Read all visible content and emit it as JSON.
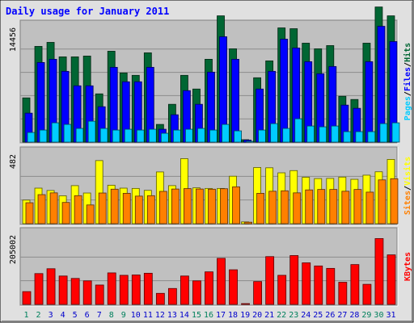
{
  "chart_data": {
    "type": "bar",
    "title": "Daily usage for January 2011",
    "categories": [
      "1",
      "2",
      "3",
      "4",
      "5",
      "6",
      "7",
      "8",
      "9",
      "10",
      "11",
      "12",
      "13",
      "14",
      "15",
      "16",
      "17",
      "18",
      "19",
      "20",
      "21",
      "22",
      "23",
      "24",
      "25",
      "26",
      "27",
      "28",
      "29",
      "30",
      "31"
    ],
    "weekend_days": [
      "1",
      "2",
      "8",
      "9",
      "15",
      "16",
      "22",
      "23",
      "29",
      "30"
    ],
    "panels": [
      {
        "id": "hits",
        "max_label": "14456",
        "max": 14456,
        "series": [
          {
            "name": "Hits",
            "color": "#006633",
            "values": [
              5500,
              11900,
              12400,
              10600,
              10600,
              10700,
              6000,
              11300,
              8600,
              8300,
              11100,
              2200,
              4700,
              8300,
              6600,
              10300,
              15700,
              11600,
              300,
              8000,
              10100,
              14200,
              14100,
              12300,
              11600,
              12000,
              5700,
              5300,
              12300,
              16800,
              15700
            ]
          },
          {
            "name": "Files",
            "color": "#0000FF",
            "values": [
              3600,
              9900,
              10300,
              8800,
              7000,
              7000,
              4400,
              9300,
              7500,
              7500,
              9300,
              1600,
              3400,
              6400,
              4700,
              8700,
              13100,
              10300,
              250,
              6600,
              8800,
              12800,
              11700,
              10000,
              8500,
              9400,
              4600,
              4200,
              10000,
              14400,
              12500
            ]
          },
          {
            "name": "Pages",
            "color": "#00CCFF",
            "values": [
              1200,
              1500,
              2400,
              2200,
              1700,
              2600,
              1700,
              1500,
              1600,
              1500,
              1600,
              1100,
              1500,
              1600,
              1700,
              1500,
              2200,
              1400,
              90,
              1500,
              2300,
              1700,
              2900,
              2000,
              1900,
              2000,
              1300,
              1300,
              1300,
              2300,
              2400
            ]
          }
        ]
      },
      {
        "id": "visits",
        "max_label": "482",
        "max": 482,
        "series": [
          {
            "name": "Visits",
            "color": "#FFFF00",
            "values": [
              160,
              241,
              225,
              189,
              258,
              208,
              428,
              261,
              241,
              239,
              226,
              351,
              258,
              441,
              243,
              239,
              239,
              322,
              12,
              381,
              379,
              345,
              360,
              315,
              306,
              307,
              316,
              301,
              329,
              352,
              436
            ]
          },
          {
            "name": "Sites",
            "color": "#FF8000",
            "values": [
              142,
              197,
              209,
              144,
              190,
              127,
              208,
              234,
              206,
              187,
              190,
              219,
              235,
              238,
              235,
              234,
              237,
              250,
              10,
              206,
              220,
              223,
              209,
              229,
              232,
              232,
              220,
              232,
              214,
              297,
              305
            ]
          }
        ]
      },
      {
        "id": "kbytes",
        "max_label": "205002",
        "max": 205002,
        "series": [
          {
            "name": "KBytes",
            "color": "#FF0000",
            "values": [
              37000,
              89000,
              103000,
              82000,
              75000,
              68000,
              56000,
              91000,
              84000,
              85000,
              90000,
              32000,
              46000,
              82000,
              68000,
              94000,
              133000,
              100000,
              1000,
              66000,
              138000,
              84000,
              141000,
              120000,
              111000,
              104000,
              64000,
              115000,
              58000,
              190000,
              143000
            ]
          }
        ]
      }
    ],
    "side_labels": {
      "hits": [
        "Pages",
        "/",
        "Files",
        "/",
        "Hits"
      ],
      "visits": [
        "Sites",
        "/",
        "Visits"
      ],
      "kbytes": [
        "KBytes"
      ]
    },
    "colors": {
      "title": "#0000FF",
      "plot_bg": "#C0C0C0",
      "frame_bg": "#E0E0E0",
      "weekday_text": "#0000CC",
      "weekend_text": "#00805C",
      "separator": "#000000"
    }
  }
}
